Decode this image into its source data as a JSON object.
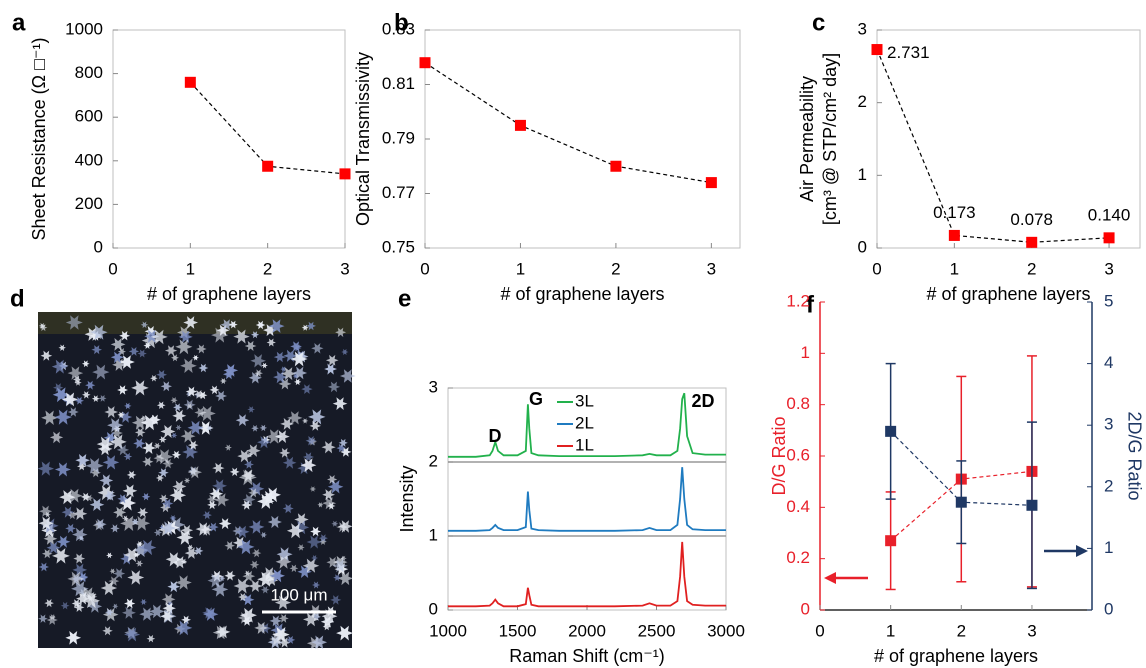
{
  "chart_data": [
    {
      "panel": "a",
      "type": "line",
      "x": [
        1,
        2,
        3
      ],
      "series": [
        {
          "values": [
            760,
            375,
            340
          ],
          "color": "#ff0000",
          "line_color": "#000000",
          "line_style": "dashed",
          "marker": "square"
        }
      ],
      "xlabel": "# of graphene layers",
      "ylabel": "Sheet Resistance (Ω □⁻¹)",
      "xlim": [
        0,
        3
      ],
      "xticks": [
        0,
        1,
        2,
        3
      ],
      "ylim": [
        0,
        1000
      ],
      "yticks": [
        0,
        200,
        400,
        600,
        800,
        1000
      ]
    },
    {
      "panel": "b",
      "type": "line",
      "x": [
        0,
        1,
        2,
        3
      ],
      "series": [
        {
          "values": [
            0.818,
            0.795,
            0.78,
            0.774
          ],
          "color": "#ff0000",
          "line_color": "#000000",
          "line_style": "dashed",
          "marker": "square"
        }
      ],
      "xlabel": "# of graphene layers",
      "ylabel": "Optical Transmissivity",
      "xlim": [
        0,
        3.3
      ],
      "xticks": [
        0,
        1,
        2,
        3
      ],
      "ylim": [
        0.75,
        0.83
      ],
      "yticks": [
        0.75,
        0.77,
        0.79,
        0.81,
        0.83
      ]
    },
    {
      "panel": "c",
      "type": "line",
      "x": [
        0,
        1,
        2,
        3
      ],
      "series": [
        {
          "values": [
            2.731,
            0.173,
            0.078,
            0.14
          ],
          "value_labels": [
            "2.731",
            "0.173",
            "0.078",
            "0.140"
          ],
          "color": "#ff0000",
          "line_color": "#000000",
          "line_style": "dashed",
          "marker": "square"
        }
      ],
      "xlabel": "# of graphene layers",
      "ylabel": [
        "Air Permeability",
        "[cm³ @ STP/cm² day]"
      ],
      "xlim": [
        0,
        3.4
      ],
      "xticks": [
        0,
        1,
        2,
        3
      ],
      "ylim": [
        0,
        3
      ],
      "yticks": [
        0,
        1,
        2,
        3
      ]
    },
    {
      "panel": "e",
      "type": "line",
      "x": [
        1000,
        1100,
        1200,
        1300,
        1320,
        1340,
        1360,
        1400,
        1500,
        1560,
        1575,
        1585,
        1600,
        1650,
        1800,
        2000,
        2200,
        2400,
        2450,
        2500,
        2600,
        2650,
        2670,
        2685,
        2700,
        2720,
        2760,
        2850,
        3000
      ],
      "series": [
        {
          "name": "3L",
          "color": "#22b14c",
          "values": [
            2.07,
            2.07,
            2.07,
            2.09,
            2.15,
            2.27,
            2.15,
            2.09,
            2.09,
            2.15,
            2.78,
            2.45,
            2.12,
            2.09,
            2.08,
            2.08,
            2.08,
            2.09,
            2.11,
            2.09,
            2.09,
            2.15,
            2.45,
            2.85,
            2.93,
            2.35,
            2.12,
            2.1,
            2.1
          ]
        },
        {
          "name": "2L",
          "color": "#1f7bc0",
          "values": [
            1.07,
            1.07,
            1.07,
            1.08,
            1.11,
            1.15,
            1.11,
            1.08,
            1.08,
            1.12,
            1.6,
            1.35,
            1.1,
            1.08,
            1.07,
            1.07,
            1.07,
            1.08,
            1.11,
            1.08,
            1.08,
            1.15,
            1.5,
            1.93,
            1.5,
            1.15,
            1.09,
            1.08,
            1.08
          ]
        },
        {
          "name": "1L",
          "color": "#e02020",
          "values": [
            0.05,
            0.05,
            0.05,
            0.06,
            0.09,
            0.14,
            0.09,
            0.05,
            0.05,
            0.08,
            0.3,
            0.2,
            0.07,
            0.05,
            0.05,
            0.05,
            0.05,
            0.06,
            0.09,
            0.06,
            0.06,
            0.12,
            0.45,
            0.92,
            0.45,
            0.12,
            0.07,
            0.06,
            0.06
          ]
        }
      ],
      "legend": "upper center",
      "reference_lines": [
        1,
        2
      ],
      "annotations": [
        "D",
        "G",
        "2D"
      ],
      "xlabel": "Raman Shift (cm⁻¹)",
      "ylabel": "Intensity",
      "xlim": [
        1000,
        3000
      ],
      "xticks": [
        1000,
        1500,
        2000,
        2500,
        3000
      ],
      "ylim": [
        0,
        3
      ],
      "yticks": [
        0,
        1,
        2,
        3
      ]
    },
    {
      "panel": "f",
      "type": "line",
      "x": [
        1,
        2,
        3
      ],
      "series": [
        {
          "values": [
            0.27,
            0.51,
            0.54
          ],
          "errors": [
            0.19,
            0.4,
            0.45
          ],
          "color": "#e8202a",
          "line_style": "dashed",
          "marker": "square"
        },
        {
          "values": [
            2.9,
            1.75,
            1.7
          ],
          "errors": [
            1.1,
            0.67,
            1.35
          ],
          "color": "#1f3864",
          "line_style": "dashed",
          "marker": "square",
          "axis": "y2"
        }
      ],
      "xlabel": "# of graphene layers",
      "ylabel": "D/G Ratio",
      "y2label": "2D/G Ratio",
      "xlim": [
        0,
        3.85
      ],
      "xticks": [
        0,
        1,
        2,
        3
      ],
      "ylim": [
        0,
        1.2
      ],
      "yticks": [
        0,
        0.2,
        0.4,
        0.6,
        0.8,
        1,
        1.2
      ],
      "y2lim": [
        0,
        5
      ],
      "y2ticks": [
        0,
        1,
        2,
        3,
        4,
        5
      ]
    }
  ],
  "image_panel": {
    "panel": "d",
    "scale_bar": "100 μm"
  }
}
